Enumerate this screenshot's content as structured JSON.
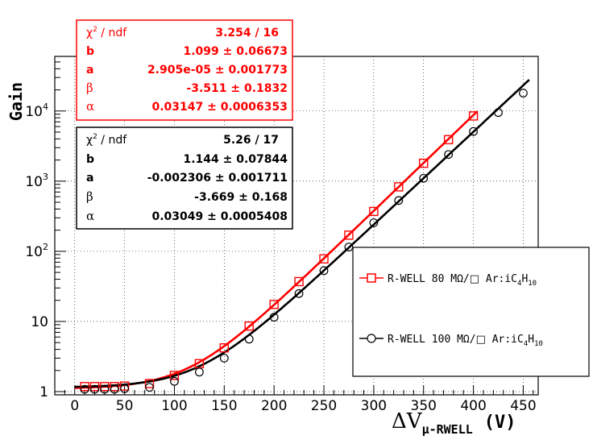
{
  "chart_data": {
    "type": "scatter",
    "ylabel": "Gain",
    "xlabel": {
      "delta": "ΔV",
      "sub": "μ-RWELL",
      "unit": "(V)"
    },
    "yscale": "log",
    "xlim": [
      -20,
      465
    ],
    "ylim": [
      0.9,
      60000
    ],
    "xticks": [
      0,
      50,
      100,
      150,
      200,
      250,
      300,
      350,
      400,
      450
    ],
    "yticks": [
      {
        "value": 1,
        "base": "1",
        "exp": ""
      },
      {
        "value": 10,
        "base": "10",
        "exp": ""
      },
      {
        "value": 100,
        "base": "10",
        "exp": "2"
      },
      {
        "value": 1000,
        "base": "10",
        "exp": "3"
      },
      {
        "value": 10000,
        "base": "10",
        "exp": "4"
      }
    ],
    "grid": true,
    "series": [
      {
        "name": {
          "pre": "R-WELL 80 MΩ/",
          "post": " Ar:iC",
          "s1": "4",
          "mid": "H",
          "s2": "10"
        },
        "color": "#ff0000",
        "marker": "square",
        "x": [
          10,
          20,
          30,
          40,
          50,
          75,
          100,
          125,
          150,
          175,
          200,
          225,
          250,
          275,
          300,
          325,
          350,
          375,
          400
        ],
        "y": [
          1.18,
          1.18,
          1.18,
          1.18,
          1.2,
          1.3,
          1.7,
          2.5,
          4.2,
          8.6,
          17.5,
          37,
          78,
          170,
          370,
          830,
          1800,
          3900,
          8500
        ],
        "fit": {
          "chi2": "3.254 / 16",
          "b": "1.099 ± 0.06673",
          "a": "2.905e-05 ± 0.001773",
          "beta": "-3.511 ± 0.1832",
          "alpha": "0.03147 ± 0.0006353",
          "A": 1.099,
          "B": -3.511,
          "C": 0.03147,
          "range": [
            0,
            405
          ]
        }
      },
      {
        "name": {
          "pre": "R-WELL 100 MΩ/",
          "post": " Ar:iC",
          "s1": "4",
          "mid": "H",
          "s2": "10"
        },
        "color": "#000000",
        "marker": "circle",
        "x": [
          10,
          20,
          30,
          40,
          50,
          75,
          100,
          125,
          150,
          175,
          200,
          225,
          250,
          275,
          300,
          325,
          350,
          375,
          400,
          425,
          450
        ],
        "y": [
          1.08,
          1.08,
          1.08,
          1.08,
          1.1,
          1.15,
          1.4,
          1.9,
          3.0,
          5.6,
          11.5,
          25,
          53,
          115,
          255,
          530,
          1100,
          2400,
          5100,
          9500,
          18000
        ],
        "fit": {
          "chi2": "5.26 / 17",
          "b": "1.144 ± 0.07844",
          "a": "-0.002306 ± 0.001711",
          "beta": "-3.669 ± 0.168",
          "alpha": "0.03049 ± 0.0005408",
          "A": 1.144,
          "B": -3.669,
          "C": 0.03049,
          "range": [
            0,
            457
          ]
        }
      }
    ],
    "stat_labels": {
      "chi2": "χ",
      "chi2_sup": "2",
      "ndf": " / ndf",
      "b": "b",
      "a": "a",
      "beta": "β",
      "alpha": "α"
    }
  }
}
